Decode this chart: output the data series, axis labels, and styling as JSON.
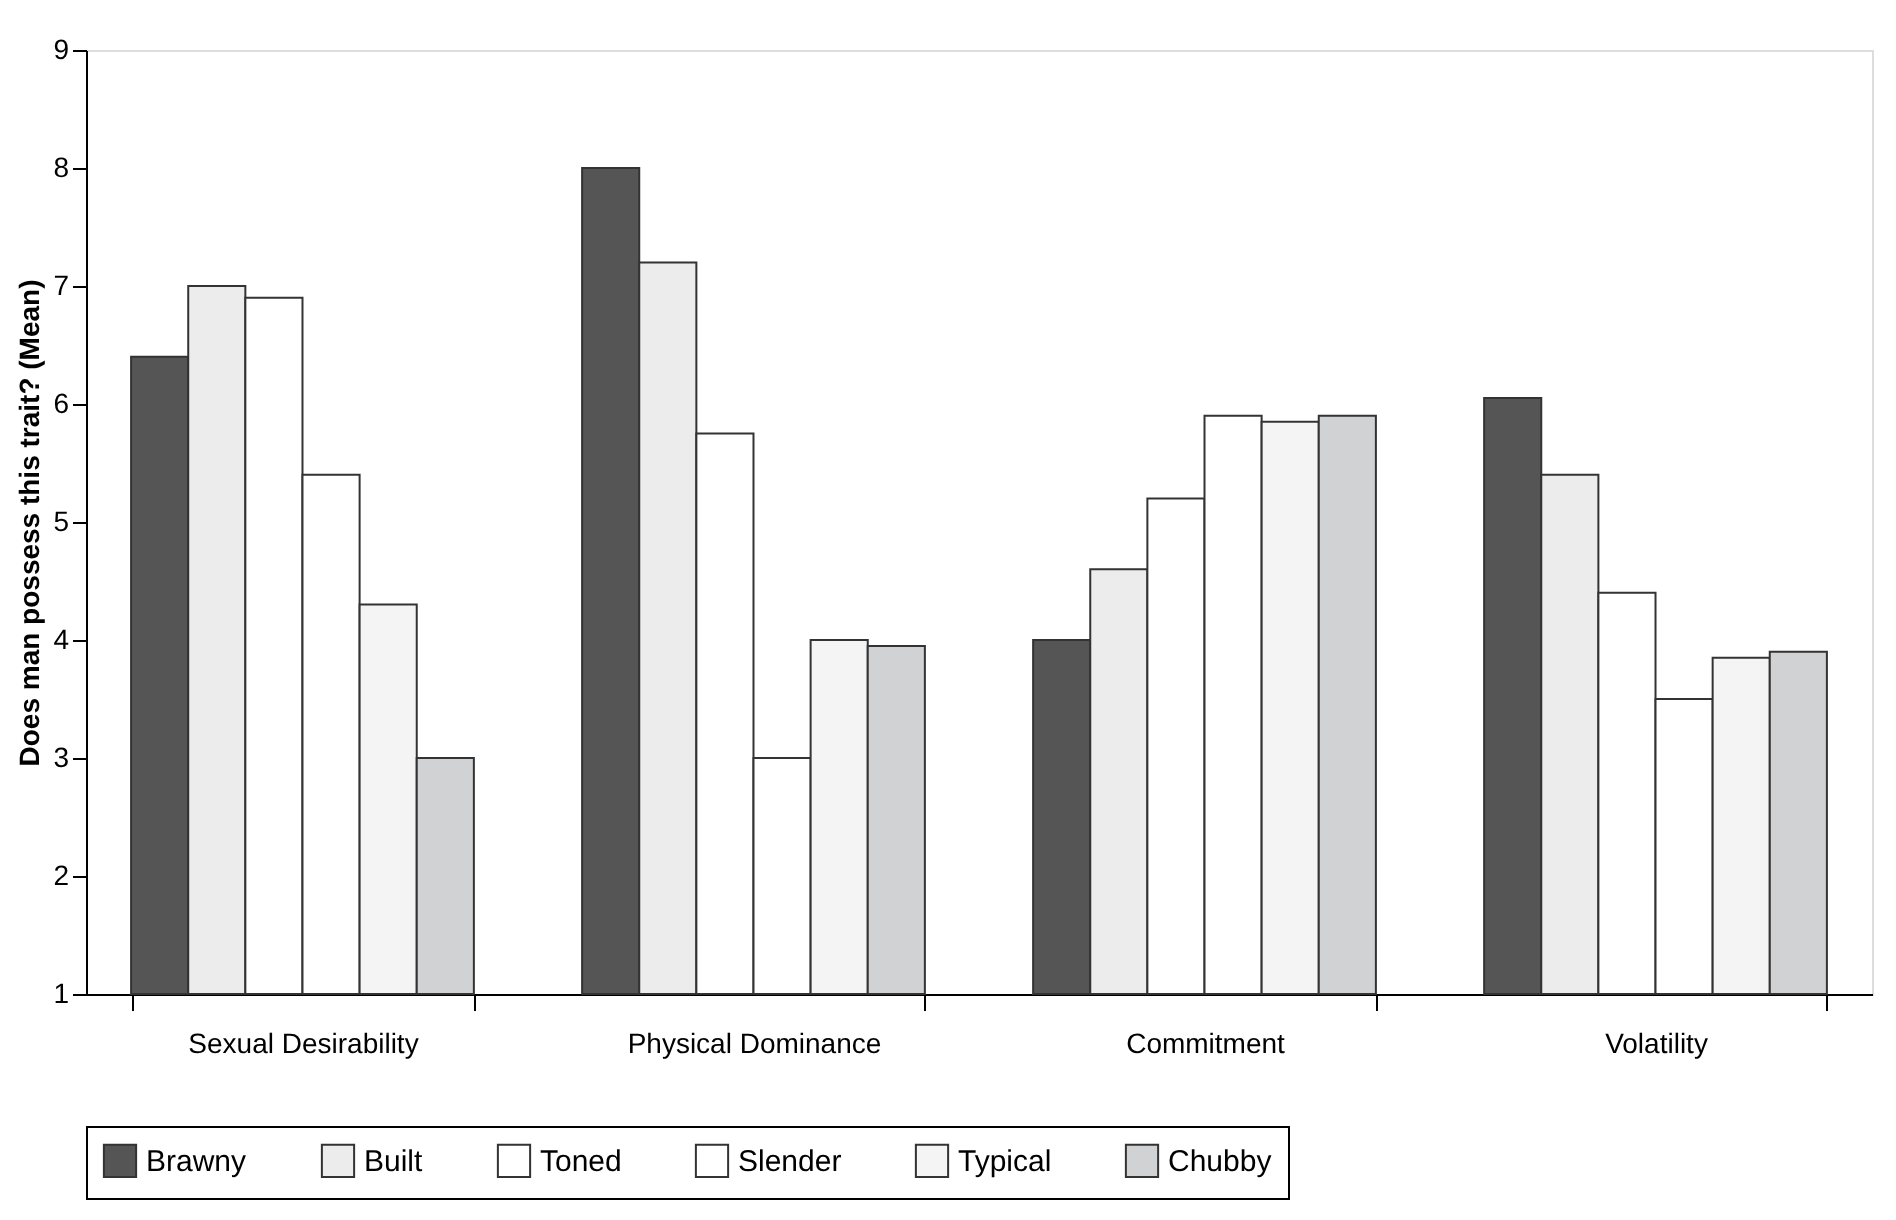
{
  "chart_data": {
    "type": "bar",
    "ylabel": "Does man possess this trait? (Mean)",
    "categories": [
      "Sexual Desirability",
      "Physical Dominance",
      "Commitment",
      "Volatility"
    ],
    "series": [
      {
        "name": "Brawny",
        "color": "#555555",
        "values": [
          6.4,
          8.0,
          4.0,
          6.05
        ]
      },
      {
        "name": "Built",
        "color": "#ececec",
        "values": [
          7.0,
          7.2,
          4.6,
          5.4
        ]
      },
      {
        "name": "Toned",
        "color": "#ffffff",
        "values": [
          6.9,
          5.75,
          5.2,
          4.4
        ]
      },
      {
        "name": "Slender",
        "color": "#ffffff",
        "values": [
          5.4,
          3.0,
          5.9,
          3.5
        ]
      },
      {
        "name": "Typical",
        "color": "#f4f4f4",
        "values": [
          4.3,
          4.0,
          5.85,
          3.85
        ]
      },
      {
        "name": "Chubby",
        "color": "#d1d2d4",
        "values": [
          3.0,
          3.95,
          5.9,
          3.9
        ]
      }
    ],
    "ylim": [
      1,
      9
    ],
    "yticks": [
      1,
      2,
      3,
      4,
      5,
      6,
      7,
      8,
      9
    ],
    "grid": false,
    "legend": "bottom"
  }
}
